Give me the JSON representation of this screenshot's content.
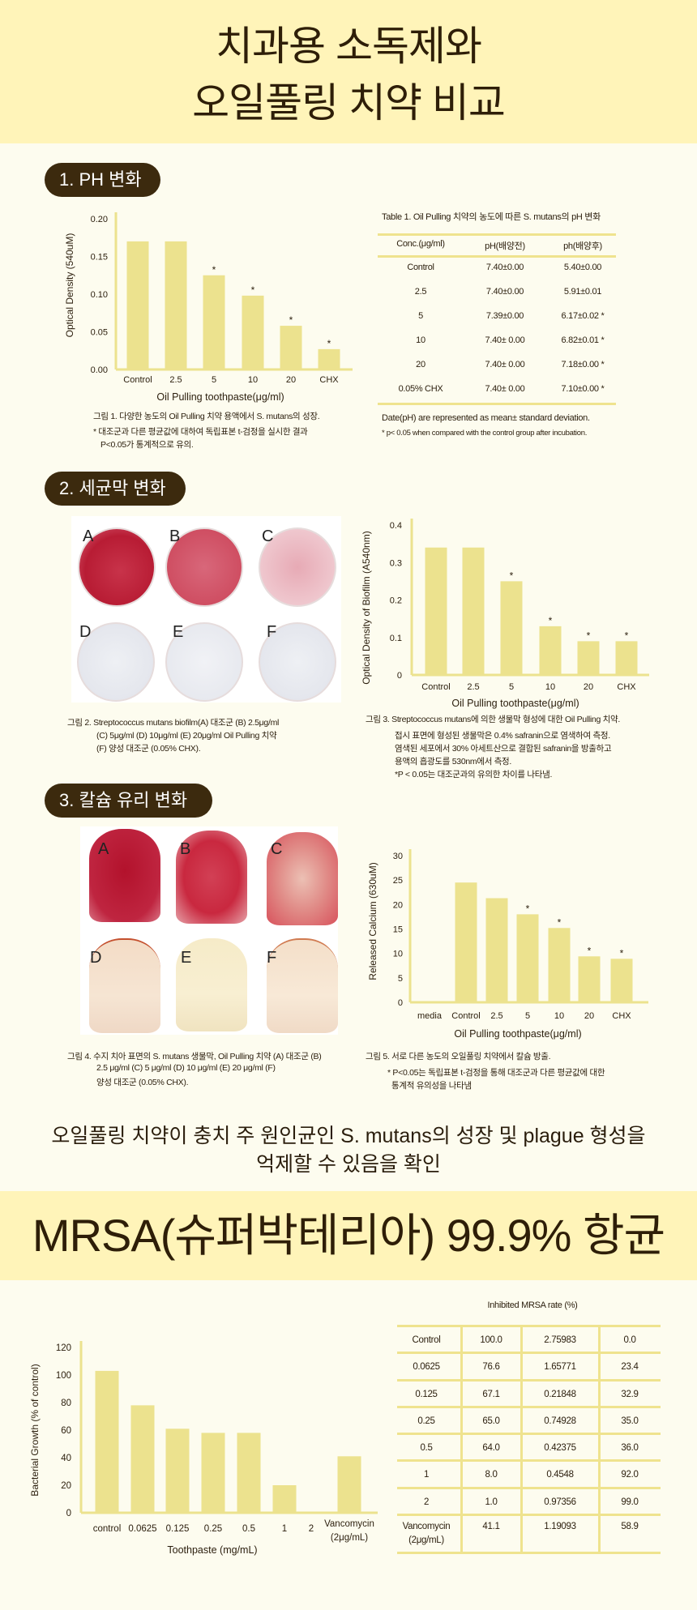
{
  "header": {
    "title_line1": "치과용 소독제와",
    "title_line2": "오일풀링 치약 비교"
  },
  "colors": {
    "header_band": "#fff4b9",
    "background": "#fdfcef",
    "pill": "#3c2a0e",
    "bar": "#ece28e",
    "table_line": "#efe38e"
  },
  "section1": {
    "pill": "1. PH 변화",
    "caption": [
      "그림 1. 다양한 농도의 Oil Pulling 치약 용액에서 S. mutans의 성장.",
      "* 대조군과 다른 평균값에 대하여 독립표본 t-검정을 실시한 결과",
      "P<0.05가 통계적으로 유의."
    ],
    "table": {
      "title": "Table 1. Oil Pulling 치약의 농도에 따른 S. mutans의 pH 변화",
      "headers": [
        "Conc.(μg/ml)",
        "pH(배양전)",
        "ph(배양후)"
      ],
      "rows": [
        [
          "Control",
          "7.40±0.00",
          "5.40±0.00"
        ],
        [
          "2.5",
          "7.40±0.00",
          "5.91±0.01"
        ],
        [
          "5",
          "7.39±0.00",
          "6.17±0.02 *"
        ],
        [
          "10",
          "7.40± 0.00",
          "6.82±0.01 *"
        ],
        [
          "20",
          "7.40± 0.00",
          "7.18±0.00 *"
        ],
        [
          "0.05% CHX",
          "7.40± 0.00",
          "7.10±0.00 *"
        ]
      ],
      "note1": "Date(pH) are represented as mean± standard deviation.",
      "note2": "* p< 0.05 when compared with the control group after incubation."
    }
  },
  "section2": {
    "pill": "2. 세균막 변화",
    "photo_labels": [
      "A",
      "B",
      "C",
      "D",
      "E",
      "F"
    ],
    "caption_left": [
      "그림 2. Streptococcus mutans biofilm(A) 대조군 (B) 2.5μg/ml",
      "(C) 5μg/ml (D) 10μg/ml (E) 20μg/ml Oil Pulling 치약",
      "(F) 양성 대조군 (0.05% CHX)."
    ],
    "caption_right": [
      "그림 3. Streptococcus mutans에 의한 생물막 형성에 대한 Oil Pulling 치약.",
      "접시 표면에 형성된 생물막은 0.4% safranin으로 염색하여 측정.",
      "염색된 세포에서 30% 아세트산으로 결합된 safranin을 방출하고",
      "용액의 흡광도를 530nm에서 측정.",
      "*P < 0.05는 대조군과의 유의한 차이를 나타냄."
    ]
  },
  "section3": {
    "pill": "3. 칼슘 유리 변화",
    "photo_labels": [
      "A",
      "B",
      "C",
      "D",
      "E",
      "F"
    ],
    "caption_left": [
      "그림 4. 수지 치아 표면의 S. mutans 생물막, Oil Pulling 치약 (A) 대조군 (B)",
      "2.5 μg/ml (C) 5 μg/ml (D) 10 μg/ml (E) 20 μg/ml (F)",
      "양성 대조군 (0.05% CHX)."
    ],
    "caption_right": [
      "그림 5. 서로 다른 농도의 오일풀링 치약에서 칼슘 방출.",
      "* P<0.05는 독립표본 t-검정을 통해 대조군과 다른 평균값에 대한",
      "통계적 유의성을 나타냄"
    ]
  },
  "summary": {
    "line1": "오일풀링 치약이 충치 주 원인균인 S. mutans의 성장 및 plague 형성을",
    "line2": "억제할 수 있음을 확인"
  },
  "mrsa": {
    "title": "MRSA(슈퍼박테리아) 99.9% 항균",
    "table": {
      "title": "Inhibited MRSA rate (%)",
      "rows": [
        [
          "Control",
          "100.0",
          "2.75983",
          "0.0"
        ],
        [
          "0.0625",
          "76.6",
          "1.65771",
          "23.4"
        ],
        [
          "0.125",
          "67.1",
          "0.21848",
          "32.9"
        ],
        [
          "0.25",
          "65.0",
          "0.74928",
          "35.0"
        ],
        [
          "0.5",
          "64.0",
          "0.42375",
          "36.0"
        ],
        [
          "1",
          "8.0",
          "0.4548",
          "92.0"
        ],
        [
          "2",
          "1.0",
          "0.97356",
          "99.0"
        ],
        [
          "Vancomycin (2μg/mL)",
          "41.1",
          "1.19093",
          "58.9"
        ]
      ]
    }
  },
  "chart_data": [
    {
      "type": "bar",
      "categories": [
        "Control",
        "2.5",
        "5",
        "10",
        "20",
        "CHX"
      ],
      "values": [
        0.17,
        0.17,
        0.125,
        0.098,
        0.058,
        0.027
      ],
      "significant": [
        false,
        false,
        true,
        true,
        true,
        true
      ],
      "xlabel": "Oil Pulling toothpaste(μg/ml)",
      "ylabel": "Optical Density (540uM)",
      "ylim": [
        0,
        0.2
      ],
      "yticks": [
        "0.00",
        "0.05",
        "0.10",
        "0.15",
        "0.20"
      ],
      "grid": false
    },
    {
      "type": "bar",
      "categories": [
        "Control",
        "2.5",
        "5",
        "10",
        "20",
        "CHX"
      ],
      "values": [
        0.34,
        0.34,
        0.25,
        0.13,
        0.09,
        0.09
      ],
      "significant": [
        false,
        false,
        true,
        true,
        true,
        true
      ],
      "xlabel": "Oil Pulling toothpaste(μg/ml)",
      "ylabel": "Optical Density of Biofilm (A540nm)",
      "ylim": [
        0,
        0.4
      ],
      "yticks": [
        "0",
        "0.1",
        "0.2",
        "0.3",
        "0.4"
      ],
      "grid": false
    },
    {
      "type": "bar",
      "categories": [
        "media",
        "Control",
        "2.5",
        "5",
        "10",
        "20",
        "CHX"
      ],
      "values": [
        0,
        24.5,
        21.3,
        18.0,
        15.2,
        9.4,
        8.9
      ],
      "significant": [
        false,
        false,
        false,
        true,
        true,
        true,
        true
      ],
      "xlabel": "Oil Pulling toothpaste(μg/ml)",
      "ylabel": "Released Calcium (630uM)",
      "ylim": [
        0,
        30
      ],
      "yticks": [
        "0",
        "5",
        "10",
        "15",
        "20",
        "25",
        "30"
      ],
      "grid": false
    },
    {
      "type": "bar",
      "categories": [
        "control",
        "0.0625",
        "0.125",
        "0.25",
        "0.5",
        "1",
        "2",
        "Vancomycin (2μg/mL)"
      ],
      "values": [
        103,
        78,
        61,
        58,
        58,
        20,
        0,
        41
      ],
      "significant": [
        false,
        false,
        false,
        false,
        false,
        false,
        false,
        false
      ],
      "xlabel": "Toothpaste (mg/mL)",
      "ylabel": "Bacterial Growth (% of control)",
      "ylim": [
        0,
        120
      ],
      "yticks": [
        "0",
        "20",
        "40",
        "60",
        "80",
        "100",
        "120"
      ],
      "grid": false
    }
  ]
}
